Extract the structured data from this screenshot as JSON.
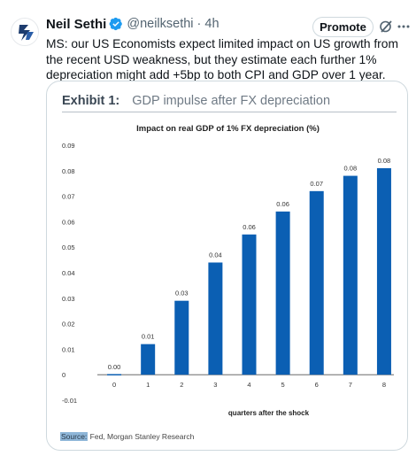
{
  "tweet": {
    "author_name": "Neil Sethi",
    "handle": "@neilksethi",
    "separator": "·",
    "time": "4h",
    "promote_label": "Promote",
    "verified_icon": "verified-badge-icon",
    "grok_icon": "grok-icon",
    "more_icon": "more-icon",
    "text": "MS: our US Economists expect limited impact on US growth from the recent USD weakness, but they estimate each further 1% depreciation might add +5bp to both CPI and GDP over 1 year."
  },
  "card": {
    "exhibit_label": "Exhibit 1:",
    "exhibit_title": "GDP impulse after FX depreciation",
    "source_label": "Source:",
    "source_text": "Fed, Morgan Stanley Research"
  },
  "chart_data": {
    "type": "bar",
    "title": "Impact on real GDP of 1% FX depreciation (%)",
    "xlabel": "quarters after the shock",
    "ylabel": "",
    "categories": [
      "0",
      "1",
      "2",
      "3",
      "4",
      "5",
      "6",
      "7",
      "8"
    ],
    "values": [
      0.0,
      0.012,
      0.029,
      0.044,
      0.055,
      0.064,
      0.072,
      0.078,
      0.081
    ],
    "data_labels": [
      "0.00",
      "0.01",
      "0.03",
      "0.04",
      "0.06",
      "0.06",
      "0.07",
      "0.08",
      "0.08"
    ],
    "y_tick_values": [
      0.09,
      0.08,
      0.07,
      0.06,
      0.05,
      0.04,
      0.03,
      0.02,
      0.01,
      0,
      -0.01
    ],
    "y_tick_labels": [
      "0.09",
      "0.08",
      "0.07",
      "0.06",
      "0.05",
      "0.04",
      "0.03",
      "0.02",
      "0.01",
      "0",
      "-0.01"
    ],
    "ylim": [
      -0.01,
      0.09
    ],
    "grid": false,
    "bar_color": "#0b5fb3"
  }
}
